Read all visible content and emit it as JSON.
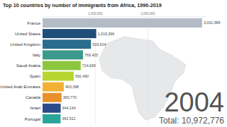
{
  "chart_data": {
    "type": "bar",
    "orientation": "horizontal",
    "title": "Top 10 countries by number of immigrants from Africa, 1990-2019",
    "categories": [
      "France",
      "United States",
      "United Kingdom",
      "Italy",
      "Saudi Arabia",
      "Spain",
      "United Arab Emirates",
      "Canada",
      "Israel",
      "Portugal"
    ],
    "values": [
      3031589,
      1019396,
      919624,
      769425,
      724665,
      592490,
      403398,
      360770,
      344144,
      342512
    ],
    "value_labels": [
      "3,031,589",
      "1,019,396",
      "919,624",
      "769,425",
      "724,665",
      "592,490",
      "403,398",
      "360,770",
      "344,144",
      "342,512"
    ],
    "colors": [
      "#b3bcc6",
      "#1f4e79",
      "#2b6d8c",
      "#3c9a8c",
      "#8cc63f",
      "#b9d531",
      "#f2b134",
      "#e8902a",
      "#2c4b8a",
      "#28a69a"
    ],
    "xlim": [
      0,
      3100000
    ],
    "xticks": [
      {
        "value": 1000000,
        "label": "1,000,000"
      },
      {
        "value": 2000000,
        "label": "2,000,000"
      }
    ],
    "grid": true,
    "data_labels": true,
    "annotations": [
      "2004",
      "Total: 10,972,776"
    ]
  }
}
